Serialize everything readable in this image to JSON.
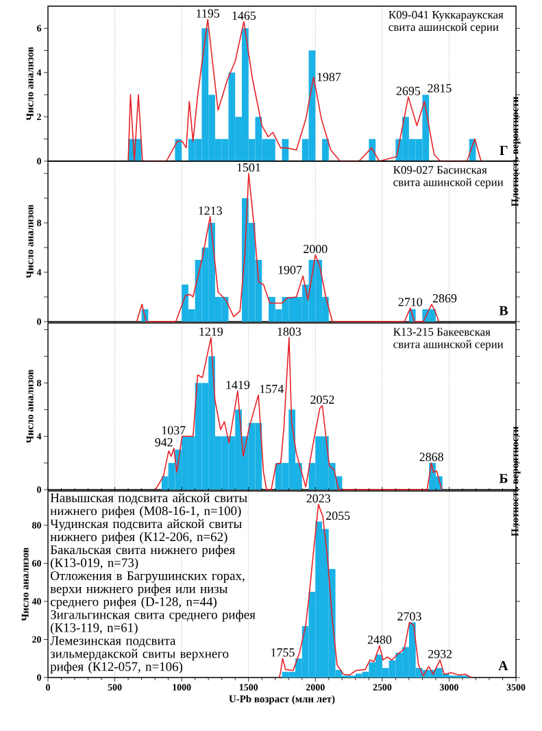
{
  "chart_data": [
    {
      "type": "histogram",
      "title": "К09-041 Куккараукская",
      "subtitle": "свита ашинской серии",
      "ylabel": "Число анализов",
      "series": [
        {
          "type": "histogram",
          "color": "#1ab2e6",
          "bins": [
            600,
            650,
            700,
            750,
            800,
            850,
            900,
            950,
            1000,
            1050,
            1100,
            1150,
            1200,
            1250,
            1300,
            1350,
            1400,
            1450,
            1500,
            1550,
            1600,
            1650,
            1700,
            1750,
            1800,
            1850,
            1900,
            1950,
            2000,
            2050,
            2100,
            2150,
            2200,
            2250,
            2300,
            2350,
            2400,
            2450,
            2500,
            2550,
            2600,
            2650,
            2700,
            2750,
            2800,
            2850,
            2900,
            2950,
            3000,
            3050,
            3100,
            3150,
            3200
          ],
          "values": [
            1,
            1,
            0,
            0,
            0,
            0,
            0,
            1,
            0,
            1,
            1,
            6,
            3,
            1,
            1,
            4,
            2,
            6,
            1,
            2,
            1,
            1,
            0,
            1,
            0,
            0,
            1,
            5,
            0,
            1,
            0,
            0,
            0,
            0,
            0,
            0,
            1,
            0,
            0,
            0,
            1,
            2,
            1,
            1,
            3,
            0,
            0,
            0,
            0,
            0,
            0,
            1
          ]
        },
        {
          "type": "line",
          "color": "#e62128",
          "x": [
            600,
            617,
            646,
            676,
            707,
            886,
            968,
            1003,
            1034,
            1057,
            1085,
            1120,
            1195,
            1272,
            1343,
            1400,
            1465,
            1530,
            1600,
            1647,
            1682,
            1740,
            1787,
            1858,
            1928,
            1987,
            2045,
            2115,
            2185,
            2326,
            2420,
            2478,
            2607,
            2695,
            2759,
            2815,
            2888,
            2934,
            3133,
            3192,
            3239
          ],
          "values": [
            0,
            3.0,
            0,
            3.0,
            0,
            0,
            0.9,
            0.9,
            0.6,
            2.7,
            0.9,
            3.0,
            6.4,
            2.3,
            3.7,
            4.5,
            6.3,
            3.7,
            1.6,
            1.1,
            1.3,
            0.6,
            0.6,
            0.5,
            1.9,
            3.8,
            1.9,
            0.5,
            0,
            0,
            0.6,
            0,
            0.2,
            2.9,
            1.6,
            2.7,
            0.3,
            0,
            0,
            1.0,
            0
          ]
        }
      ],
      "xlim": [
        0,
        3500
      ],
      "ylim": [
        0,
        7
      ],
      "xticks": [
        0,
        500,
        1000,
        1500,
        2000,
        2500,
        3000,
        3500
      ],
      "yticks": [
        0,
        {
          "value": 1,
          "label": null
        },
        2,
        {
          "value": 3,
          "label": null
        },
        4,
        {
          "value": 5,
          "label": null
        },
        6
      ],
      "grid": "x",
      "tick_labels": "y",
      "annotations": [
        "Г",
        {
          "text": "1195",
          "x": 1195,
          "y": 6.4
        },
        {
          "text": "1465",
          "x": 1465,
          "y": 6.3
        },
        {
          "text": "1987",
          "x": 1987,
          "y": 3.8
        },
        {
          "text": "2695",
          "x": 2695,
          "y": 2.9
        },
        {
          "text": "2815",
          "x": 2815,
          "y": 2.7
        }
      ]
    },
    {
      "type": "histogram",
      "title": "К09-027 Басинская",
      "subtitle": "свита ашинской серии",
      "ylabel": "Число анализов",
      "y2label": "Плотность вероятности",
      "series": [
        {
          "type": "histogram",
          "color": "#1ab2e6",
          "bins": [
            700,
            750,
            800,
            850,
            900,
            950,
            1000,
            1050,
            1100,
            1150,
            1200,
            1250,
            1300,
            1350,
            1400,
            1450,
            1500,
            1550,
            1600,
            1650,
            1700,
            1750,
            1800,
            1850,
            1900,
            1950,
            2000,
            2050,
            2100,
            2150,
            2200,
            2250,
            2300,
            2350,
            2400,
            2450,
            2500,
            2550,
            2600,
            2650,
            2700,
            2750,
            2800,
            2850,
            2900
          ],
          "values": [
            1,
            0,
            0,
            0,
            0,
            0,
            3,
            1,
            5,
            6,
            8,
            2,
            2,
            0,
            0,
            10,
            8,
            5,
            0,
            2,
            1,
            2,
            2,
            2,
            3,
            5,
            5,
            2,
            0,
            0,
            0,
            0,
            0,
            0,
            0,
            0,
            0,
            0,
            0,
            0,
            1,
            0,
            1,
            1
          ]
        },
        {
          "type": "line",
          "color": "#e62128",
          "x": [
            664,
            703,
            734,
            956,
            1027,
            1062,
            1085,
            1155,
            1213,
            1272,
            1331,
            1389,
            1436,
            1471,
            1501,
            1541,
            1576,
            1612,
            1659,
            1752,
            1787,
            1858,
            1907,
            1944,
            2000,
            2033,
            2080,
            2127,
            2665,
            2710,
            2740,
            2807,
            2869,
            2895,
            2923
          ],
          "values": [
            0,
            1.4,
            0,
            0,
            2.1,
            2.2,
            2.0,
            5.2,
            8.5,
            2.4,
            1.75,
            0.4,
            0.85,
            5.2,
            12,
            7.8,
            3.2,
            3.0,
            1.5,
            1.5,
            1.9,
            2.0,
            3.7,
            1.75,
            5.4,
            4.5,
            1.9,
            0,
            0,
            1.1,
            0,
            0,
            1.4,
            0.85,
            0
          ]
        }
      ],
      "xlim": [
        0,
        3500
      ],
      "ylim": [
        0,
        13
      ],
      "xticks": [
        0,
        500,
        1000,
        1500,
        2000,
        2500,
        3000,
        3500
      ],
      "yticks": [
        0,
        {
          "value": 2,
          "label": null
        },
        4,
        {
          "value": 6,
          "label": null
        },
        8,
        {
          "value": 10,
          "label": null
        },
        {
          "value": 12,
          "label": null
        }
      ],
      "grid": "x",
      "tick_labels": "y",
      "annotations": [
        "В",
        {
          "text": "1213",
          "x": 1213,
          "y": 8.5
        },
        {
          "text": "1501",
          "x": 1501,
          "y": 12
        },
        {
          "text": "1907",
          "x": 1907,
          "y": 3.7
        },
        {
          "text": "2000",
          "x": 2000,
          "y": 5.4
        },
        {
          "text": "2710",
          "x": 2710,
          "y": 1.1
        },
        {
          "text": "2869",
          "x": 2869,
          "y": 1.4
        }
      ]
    },
    {
      "type": "histogram",
      "title": "К13-215 Бакеевская",
      "subtitle": "свита ашинской серии",
      "ylabel": "Число анализов",
      "series": [
        {
          "type": "histogram",
          "color": "#1ab2e6",
          "bins": [
            850,
            900,
            950,
            1000,
            1050,
            1100,
            1150,
            1200,
            1250,
            1300,
            1350,
            1400,
            1450,
            1500,
            1550,
            1600,
            1650,
            1700,
            1750,
            1800,
            1850,
            1900,
            1950,
            2000,
            2050,
            2100,
            2150,
            2200,
            2250,
            2300,
            2350,
            2400,
            2450,
            2500,
            2550,
            2600,
            2650,
            2700,
            2750,
            2800,
            2850,
            2900,
            2950
          ],
          "values": [
            1,
            2,
            3,
            4,
            4,
            8,
            8,
            10,
            4,
            4,
            4,
            6,
            4,
            5,
            5,
            0,
            0,
            2,
            2,
            6,
            2,
            0,
            2,
            4,
            4,
            2,
            1,
            0,
            0,
            0,
            0,
            0,
            0,
            0,
            0,
            0,
            0,
            0,
            0,
            0,
            2,
            1
          ]
        },
        {
          "type": "line",
          "color": "#e62128",
          "x": [
            804,
            863,
            903,
            922,
            942,
            963,
            1003,
            1037,
            1085,
            1120,
            1155,
            1219,
            1249,
            1291,
            1319,
            1354,
            1419,
            1460,
            1506,
            1574,
            1612,
            1635,
            1670,
            1706,
            1741,
            1764,
            1803,
            1822,
            1858,
            1928,
            1975,
            2033,
            2052,
            2104,
            2139,
            2174,
            2836,
            2868,
            2883,
            2906,
            2946
          ],
          "values": [
            0,
            1.0,
            2.9,
            2.5,
            3.1,
            1.3,
            4.0,
            4.0,
            4.0,
            8.6,
            8.4,
            11.4,
            6.7,
            4.5,
            5.1,
            3.5,
            7.4,
            2.5,
            4.7,
            7.1,
            1.3,
            0,
            0,
            1.9,
            2.0,
            4.6,
            11.4,
            5.1,
            2.7,
            0.2,
            3.0,
            6.1,
            6.3,
            1.8,
            1.5,
            0,
            0,
            2.0,
            1.3,
            1.4,
            0
          ]
        }
      ],
      "xlim": [
        0,
        3500
      ],
      "ylim": [
        0,
        12.5
      ],
      "xticks": [
        0,
        500,
        1000,
        1500,
        2000,
        2500,
        3000,
        3500
      ],
      "yticks": [
        0,
        {
          "value": 2,
          "label": null
        },
        4,
        {
          "value": 6,
          "label": null
        },
        8,
        {
          "value": 10,
          "label": null
        },
        {
          "value": 12,
          "label": null
        }
      ],
      "grid": "x",
      "tick_labels": "y",
      "annotations": [
        "Б",
        {
          "text": "942",
          "x": 942,
          "y": 3.1
        },
        {
          "text": "1037",
          "x": 1037,
          "y": 4.0
        },
        {
          "text": "1219",
          "x": 1219,
          "y": 11.4
        },
        {
          "text": "1419",
          "x": 1419,
          "y": 7.4
        },
        {
          "text": "1574",
          "x": 1574,
          "y": 7.1
        },
        {
          "text": "1803",
          "x": 1803,
          "y": 11.4
        },
        {
          "text": "2052",
          "x": 2052,
          "y": 6.3
        },
        {
          "text": "2868",
          "x": 2868,
          "y": 2.0
        }
      ]
    },
    {
      "type": "histogram",
      "ylabel": "Число анализов",
      "y2label": "Плотность вероятности",
      "xlabel": "U-Pb возраст (млн лет)",
      "series": [
        {
          "type": "histogram",
          "color": "#1ab2e6",
          "bins": [
            1750,
            1800,
            1850,
            1900,
            1950,
            2000,
            2050,
            2100,
            2150,
            2200,
            2250,
            2300,
            2350,
            2400,
            2450,
            2500,
            2550,
            2600,
            2650,
            2700,
            2750,
            2800,
            2850,
            2900,
            2950,
            3000,
            3050,
            3100,
            3150
          ],
          "values": [
            3,
            3,
            10,
            27,
            45,
            82,
            78,
            57,
            4,
            1,
            1,
            2,
            3,
            8,
            12,
            5,
            9,
            13,
            16,
            29,
            5,
            4,
            4,
            5,
            2,
            1,
            1,
            1
          ]
        },
        {
          "type": "line",
          "color": "#e62128",
          "x": [
            1730,
            1740,
            1755,
            1776,
            1834,
            1881,
            1928,
            1956,
            1987,
            2023,
            2040,
            2055,
            2092,
            2127,
            2162,
            2209,
            2256,
            2303,
            2373,
            2408,
            2438,
            2480,
            2506,
            2537,
            2572,
            2619,
            2665,
            2703,
            2735,
            2771,
            2806,
            2848,
            2880,
            2932,
            2963,
            3016,
            3075,
            3122,
            3168
          ],
          "values": [
            0,
            3,
            10,
            4.2,
            3.7,
            13,
            27.5,
            45,
            67,
            91,
            87.5,
            85,
            62,
            30,
            6.7,
            1.7,
            1.3,
            3.7,
            4.2,
            9.2,
            8.3,
            16.7,
            9.2,
            10.8,
            9.2,
            12.5,
            15,
            29,
            27.5,
            6.7,
            0.8,
            5.8,
            1.7,
            9.2,
            1.7,
            2.5,
            1.3,
            1.7,
            0
          ]
        }
      ],
      "xlim": [
        0,
        3500
      ],
      "ylim": [
        0,
        98
      ],
      "xticks": [
        0,
        {
          "value": 100,
          "label": null
        },
        {
          "value": 200,
          "label": null
        },
        {
          "value": 300,
          "label": null
        },
        {
          "value": 400,
          "label": null
        },
        500,
        {
          "value": 600,
          "label": null
        },
        {
          "value": 700,
          "label": null
        },
        {
          "value": 800,
          "label": null
        },
        {
          "value": 900,
          "label": null
        },
        1000,
        {
          "value": 1100,
          "label": null
        },
        {
          "value": 1200,
          "label": null
        },
        {
          "value": 1300,
          "label": null
        },
        {
          "value": 1400,
          "label": null
        },
        1500,
        {
          "value": 1600,
          "label": null
        },
        {
          "value": 1700,
          "label": null
        },
        {
          "value": 1800,
          "label": null
        },
        {
          "value": 1900,
          "label": null
        },
        2000,
        {
          "value": 2100,
          "label": null
        },
        {
          "value": 2200,
          "label": null
        },
        {
          "value": 2300,
          "label": null
        },
        {
          "value": 2400,
          "label": null
        },
        2500,
        {
          "value": 2600,
          "label": null
        },
        {
          "value": 2700,
          "label": null
        },
        {
          "value": 2800,
          "label": null
        },
        {
          "value": 2900,
          "label": null
        },
        3000,
        {
          "value": 3100,
          "label": null
        },
        {
          "value": 3200,
          "label": null
        },
        {
          "value": 3300,
          "label": null
        },
        {
          "value": 3400,
          "label": null
        },
        3500
      ],
      "yticks": [
        0,
        20,
        40,
        60,
        80
      ],
      "grid": "x",
      "annotations": [
        "А",
        "Навышская подсвита айской свиты нижнего рифея (М08-16-1, n=100)",
        "Чудинская подсвита айской свиты нижнего рифея (К12-206, n=62)",
        "Бакальская свита нижнего рифея (К13-019, n=73)",
        "Отложения в Багрушинских горах, верхи нижнего рифея или низы среднего рифея (D-128, n=44)",
        "Зигальгинская свита среднего рифея (К13-119, n=61)",
        "Лемезинская подсвита зильмердакской свиты верхнего рифея (К12-057, n=106)",
        {
          "text": "1755",
          "x": 1755,
          "y": 10
        },
        {
          "text": "2023",
          "x": 2023,
          "y": 91
        },
        {
          "text": "2055",
          "x": 2055,
          "y": 85
        },
        {
          "text": "2480",
          "x": 2480,
          "y": 16.7
        },
        {
          "text": "2703",
          "x": 2703,
          "y": 29
        },
        {
          "text": "2932",
          "x": 2932,
          "y": 9.2
        }
      ]
    }
  ]
}
